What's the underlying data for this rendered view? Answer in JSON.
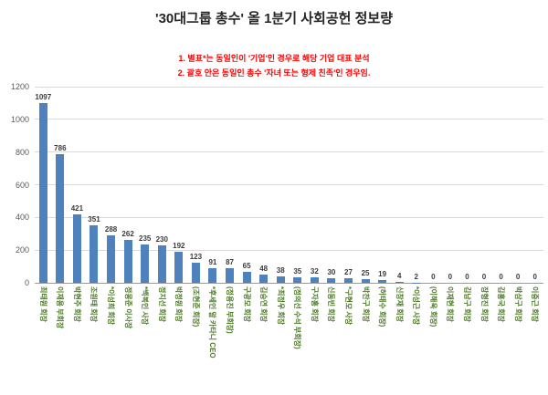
{
  "title": "'30대그룹 총수' 올 1분기 사회공헌 정보량",
  "annotations": {
    "line1": "1. 별표*는 동일인이 '기업'인 경우로 해당 기업 대표 분석",
    "line2": "2. 괄호 안은 동일인 총수 '자녀 또는 형제 친족'인 경우임."
  },
  "colors": {
    "bar": "#4f81bd",
    "annotation": "#ff0000",
    "x_label": "#4e7b28",
    "value_label": "#3b3b3b",
    "gridline": "#d9d9d9",
    "axis_line": "#9b9b9b",
    "y_tick": "#595959",
    "title": "#262626",
    "background": "#ffffff"
  },
  "chart_data": {
    "type": "bar",
    "title": "'30대그룹 총수' 올 1분기 사회공헌 정보량",
    "xlabel": "",
    "ylabel": "",
    "ylim": [
      0,
      1200
    ],
    "yticks": [
      0,
      200,
      400,
      600,
      800,
      1000,
      1200
    ],
    "grid": true,
    "legend": false,
    "categories": [
      "최태원 회장",
      "이재용 부회장",
      "박현주 회장",
      "조원태 회장",
      "*이성희 회장",
      "정몽준 이사장",
      "*백복인 사장",
      "정지선 회장",
      "박정원 회장",
      "(조현준 회장)",
      "*후세인 알 카타니 CEO",
      "(정용진 부회장)",
      "구광모 회장",
      "김승연 회장",
      "*최정우 회장",
      "(정의선 수석 부회장)",
      "구자홍 회장",
      "신동빈 회장",
      "*구현모 사장",
      "박찬구 회장",
      "(허태수 회장)",
      "신창재 회장",
      "*이성근 사장",
      "(이해욱 회장)",
      "이재현 회장",
      "김남구 회장",
      "장형진 회장",
      "김홍국 회장",
      "박삼구 회장",
      "이중근 회장"
    ],
    "values": [
      1097,
      786,
      421,
      351,
      288,
      262,
      235,
      230,
      192,
      123,
      91,
      87,
      65,
      48,
      38,
      35,
      32,
      30,
      27,
      25,
      19,
      4,
      2,
      0,
      0,
      0,
      0,
      0,
      0,
      0
    ]
  }
}
